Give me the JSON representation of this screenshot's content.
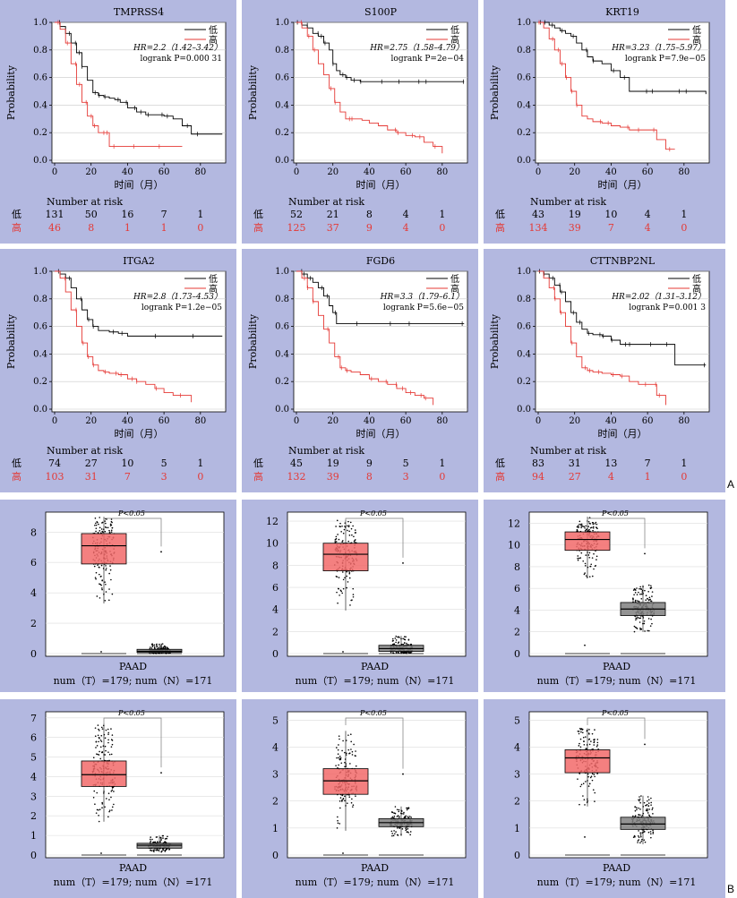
{
  "figure_labels": {
    "a": "A",
    "b": "B"
  },
  "chart_data": [
    {
      "type": "line",
      "kind": "kaplan-meier",
      "title": "TMPRSS4",
      "xlabel": "时间（月）",
      "ylabel": "Probability",
      "xlim": [
        0,
        95
      ],
      "ylim": [
        0,
        1
      ],
      "xticks": [
        0,
        20,
        40,
        60,
        80
      ],
      "yticks": [
        0.0,
        0.2,
        0.4,
        0.6,
        0.8,
        1.0
      ],
      "legend_position": "top-right",
      "hr_text": "HR=2.2（1.42–3.42）",
      "logrank_text": "logrank P=0.000 31",
      "risk_title": "Number at risk",
      "series": [
        {
          "name": "低",
          "color": "#000000",
          "risk": [
            "131",
            "50",
            "16",
            "7",
            "1"
          ],
          "x": [
            0,
            3,
            6,
            9,
            12,
            15,
            18,
            21,
            24,
            27,
            30,
            33,
            36,
            40,
            45,
            50,
            55,
            60,
            65,
            70,
            75,
            80,
            85,
            92
          ],
          "y": [
            1.0,
            0.97,
            0.92,
            0.85,
            0.78,
            0.68,
            0.58,
            0.49,
            0.47,
            0.46,
            0.45,
            0.44,
            0.42,
            0.38,
            0.35,
            0.33,
            0.33,
            0.32,
            0.3,
            0.25,
            0.19,
            0.19,
            0.19,
            0.19
          ]
        },
        {
          "name": "高",
          "color": "#e53935",
          "risk": [
            "46",
            "8",
            "1",
            "1",
            "0"
          ],
          "x": [
            0,
            3,
            6,
            9,
            12,
            15,
            18,
            21,
            24,
            27,
            30,
            40,
            50,
            60,
            70
          ],
          "y": [
            1.0,
            0.95,
            0.85,
            0.7,
            0.55,
            0.42,
            0.32,
            0.25,
            0.2,
            0.2,
            0.1,
            0.1,
            0.1,
            0.1,
            0.1
          ]
        }
      ]
    },
    {
      "type": "line",
      "kind": "kaplan-meier",
      "title": "S100P",
      "xlabel": "时间（月）",
      "ylabel": "Probability",
      "xlim": [
        0,
        95
      ],
      "ylim": [
        0,
        1
      ],
      "xticks": [
        0,
        20,
        40,
        60,
        80
      ],
      "yticks": [
        0.0,
        0.2,
        0.4,
        0.6,
        0.8,
        1.0
      ],
      "legend_position": "top-right",
      "hr_text": "HR=2.75（1.58–4.79）",
      "logrank_text": "logrank P=2e−04",
      "risk_title": "Number at risk",
      "series": [
        {
          "name": "低",
          "color": "#000000",
          "risk": [
            "52",
            "21",
            "8",
            "4",
            "1"
          ],
          "x": [
            0,
            3,
            6,
            9,
            12,
            15,
            18,
            20,
            22,
            24,
            27,
            30,
            35,
            40,
            50,
            60,
            70,
            80,
            92
          ],
          "y": [
            1.0,
            0.98,
            0.96,
            0.92,
            0.9,
            0.85,
            0.8,
            0.7,
            0.65,
            0.62,
            0.6,
            0.58,
            0.57,
            0.57,
            0.57,
            0.57,
            0.57,
            0.57,
            0.57
          ]
        },
        {
          "name": "高",
          "color": "#e53935",
          "risk": [
            "125",
            "37",
            "9",
            "4",
            "0"
          ],
          "x": [
            0,
            3,
            6,
            9,
            12,
            15,
            18,
            21,
            24,
            27,
            30,
            36,
            40,
            45,
            50,
            55,
            60,
            65,
            70,
            75,
            80
          ],
          "y": [
            1.0,
            0.96,
            0.9,
            0.8,
            0.7,
            0.62,
            0.52,
            0.42,
            0.35,
            0.3,
            0.3,
            0.29,
            0.27,
            0.25,
            0.22,
            0.2,
            0.18,
            0.17,
            0.13,
            0.1,
            0.05
          ]
        }
      ]
    },
    {
      "type": "line",
      "kind": "kaplan-meier",
      "title": "KRT19",
      "xlabel": "时间（月）",
      "ylabel": "Probability",
      "xlim": [
        0,
        95
      ],
      "ylim": [
        0,
        1
      ],
      "xticks": [
        0,
        20,
        40,
        60,
        80
      ],
      "yticks": [
        0.0,
        0.2,
        0.4,
        0.6,
        0.8,
        1.0
      ],
      "legend_position": "top-right",
      "hr_text": "HR=3.23（1.75–5.97）",
      "logrank_text": "logrank P=7.9e−05",
      "risk_title": "Number at risk",
      "series": [
        {
          "name": "低",
          "color": "#000000",
          "risk": [
            "43",
            "19",
            "10",
            "4",
            "1"
          ],
          "x": [
            0,
            3,
            6,
            9,
            12,
            15,
            18,
            21,
            24,
            27,
            30,
            35,
            40,
            45,
            50,
            60,
            70,
            80,
            92
          ],
          "y": [
            1.0,
            1.0,
            0.98,
            0.96,
            0.94,
            0.92,
            0.9,
            0.85,
            0.8,
            0.75,
            0.72,
            0.7,
            0.65,
            0.6,
            0.5,
            0.5,
            0.5,
            0.5,
            0.48
          ]
        },
        {
          "name": "高",
          "color": "#e53935",
          "risk": [
            "134",
            "39",
            "7",
            "4",
            "0"
          ],
          "x": [
            0,
            3,
            6,
            9,
            12,
            15,
            18,
            21,
            24,
            27,
            30,
            35,
            40,
            45,
            50,
            60,
            65,
            70,
            75
          ],
          "y": [
            1.0,
            0.96,
            0.88,
            0.8,
            0.7,
            0.6,
            0.5,
            0.4,
            0.32,
            0.3,
            0.28,
            0.27,
            0.25,
            0.24,
            0.22,
            0.22,
            0.15,
            0.08,
            0.08
          ]
        }
      ]
    },
    {
      "type": "line",
      "kind": "kaplan-meier",
      "title": "ITGA2",
      "xlabel": "时间（月）",
      "ylabel": "Probability",
      "xlim": [
        0,
        95
      ],
      "ylim": [
        0,
        1
      ],
      "xticks": [
        0,
        20,
        40,
        60,
        80
      ],
      "yticks": [
        0.0,
        0.2,
        0.4,
        0.6,
        0.8,
        1.0
      ],
      "legend_position": "top-right",
      "hr_text": "HR=2.8（1.73–4.53）",
      "logrank_text": "logrank P=1.2e−05",
      "risk_title": "Number at risk",
      "series": [
        {
          "name": "低",
          "color": "#000000",
          "risk": [
            "74",
            "27",
            "10",
            "5",
            "1"
          ],
          "x": [
            0,
            3,
            6,
            9,
            12,
            15,
            18,
            21,
            24,
            30,
            35,
            40,
            50,
            60,
            70,
            80,
            92
          ],
          "y": [
            1.0,
            0.98,
            0.95,
            0.88,
            0.8,
            0.72,
            0.65,
            0.6,
            0.57,
            0.56,
            0.55,
            0.53,
            0.53,
            0.53,
            0.53,
            0.53,
            0.53
          ]
        },
        {
          "name": "高",
          "color": "#e53935",
          "risk": [
            "103",
            "31",
            "7",
            "3",
            "0"
          ],
          "x": [
            0,
            3,
            6,
            9,
            12,
            15,
            18,
            21,
            24,
            27,
            30,
            35,
            40,
            45,
            50,
            55,
            60,
            65,
            70,
            75
          ],
          "y": [
            1.0,
            0.95,
            0.85,
            0.72,
            0.6,
            0.48,
            0.38,
            0.32,
            0.28,
            0.27,
            0.26,
            0.25,
            0.22,
            0.2,
            0.18,
            0.15,
            0.12,
            0.1,
            0.1,
            0.05
          ]
        }
      ]
    },
    {
      "type": "line",
      "kind": "kaplan-meier",
      "title": "FGD6",
      "xlabel": "时间（月）",
      "ylabel": "Probability",
      "xlim": [
        0,
        95
      ],
      "ylim": [
        0,
        1
      ],
      "xticks": [
        0,
        20,
        40,
        60,
        80
      ],
      "yticks": [
        0.0,
        0.2,
        0.4,
        0.6,
        0.8,
        1.0
      ],
      "legend_position": "top-right",
      "hr_text": "HR=3.3（1.79–6.1）",
      "logrank_text": "logrank P=5.6e−05",
      "risk_title": "Number at risk",
      "series": [
        {
          "name": "低",
          "color": "#000000",
          "risk": [
            "45",
            "19",
            "9",
            "5",
            "1"
          ],
          "x": [
            0,
            3,
            6,
            9,
            12,
            15,
            18,
            20,
            22,
            24,
            30,
            40,
            50,
            60,
            70,
            80,
            92
          ],
          "y": [
            1.0,
            0.98,
            0.95,
            0.92,
            0.88,
            0.82,
            0.75,
            0.7,
            0.62,
            0.62,
            0.62,
            0.62,
            0.62,
            0.62,
            0.62,
            0.62,
            0.62
          ]
        },
        {
          "name": "高",
          "color": "#e53935",
          "risk": [
            "132",
            "39",
            "8",
            "3",
            "0"
          ],
          "x": [
            0,
            3,
            6,
            9,
            12,
            15,
            18,
            21,
            24,
            27,
            30,
            35,
            40,
            45,
            50,
            55,
            60,
            65,
            70,
            75
          ],
          "y": [
            1.0,
            0.95,
            0.88,
            0.78,
            0.68,
            0.58,
            0.48,
            0.38,
            0.3,
            0.28,
            0.27,
            0.25,
            0.22,
            0.2,
            0.18,
            0.15,
            0.12,
            0.1,
            0.08,
            0.03
          ]
        }
      ]
    },
    {
      "type": "line",
      "kind": "kaplan-meier",
      "title": "CTTNBP2NL",
      "xlabel": "时间（月）",
      "ylabel": "Probability",
      "xlim": [
        0,
        95
      ],
      "ylim": [
        0,
        1
      ],
      "xticks": [
        0,
        20,
        40,
        60,
        80
      ],
      "yticks": [
        0.0,
        0.2,
        0.4,
        0.6,
        0.8,
        1.0
      ],
      "legend_position": "top-right",
      "hr_text": "HR=2.02（1.31–3.12）",
      "logrank_text": "logrank P=0.001 3",
      "risk_title": "Number at risk",
      "series": [
        {
          "name": "低",
          "color": "#000000",
          "risk": [
            "83",
            "31",
            "13",
            "7",
            "1"
          ],
          "x": [
            0,
            3,
            6,
            9,
            12,
            15,
            18,
            21,
            24,
            27,
            30,
            35,
            40,
            45,
            50,
            60,
            65,
            70,
            75,
            80,
            92
          ],
          "y": [
            1.0,
            0.98,
            0.95,
            0.9,
            0.85,
            0.78,
            0.7,
            0.63,
            0.58,
            0.55,
            0.54,
            0.53,
            0.5,
            0.47,
            0.47,
            0.47,
            0.47,
            0.47,
            0.32,
            0.32,
            0.32
          ]
        },
        {
          "name": "高",
          "color": "#e53935",
          "risk": [
            "94",
            "27",
            "4",
            "1",
            "0"
          ],
          "x": [
            0,
            3,
            6,
            9,
            12,
            15,
            18,
            21,
            24,
            27,
            30,
            35,
            40,
            45,
            50,
            55,
            60,
            65,
            70
          ],
          "y": [
            1.0,
            0.95,
            0.88,
            0.8,
            0.7,
            0.6,
            0.48,
            0.38,
            0.3,
            0.28,
            0.27,
            0.26,
            0.25,
            0.24,
            0.2,
            0.18,
            0.18,
            0.1,
            0.03
          ]
        }
      ]
    },
    {
      "type": "box",
      "xlabel": "PAAD",
      "caption": "num（T）=179; num（N）=171",
      "significance": "P<0.05",
      "ylim": [
        0,
        9.3
      ],
      "yticks": [
        0,
        2,
        4,
        6,
        8
      ],
      "groups": [
        {
          "id": "T",
          "color": "#f26a6a",
          "q1": 5.9,
          "median": 7.1,
          "q3": 7.9,
          "whisker_low": 3.3,
          "whisker_high": 9.0,
          "min_point": 0.0
        },
        {
          "id": "N",
          "color": "#808080",
          "q1": 0.08,
          "median": 0.15,
          "q3": 0.28,
          "whisker_low": 0.0,
          "whisker_high": 0.65,
          "max_point": 6.7
        }
      ]
    },
    {
      "type": "box",
      "xlabel": "PAAD",
      "caption": "num（T）=179; num（N）=171",
      "significance": "P<0.05",
      "ylim": [
        0,
        12.8
      ],
      "yticks": [
        0,
        2,
        4,
        6,
        8,
        10,
        12
      ],
      "groups": [
        {
          "id": "T",
          "color": "#f26a6a",
          "q1": 7.5,
          "median": 9.0,
          "q3": 10.0,
          "whisker_low": 3.9,
          "whisker_high": 12.1,
          "min_point": 0.0
        },
        {
          "id": "N",
          "color": "#808080",
          "q1": 0.2,
          "median": 0.45,
          "q3": 0.75,
          "whisker_low": 0.0,
          "whisker_high": 1.6,
          "max_point": 8.2
        }
      ]
    },
    {
      "type": "box",
      "xlabel": "PAAD",
      "caption": "num（T）=179; num（N）=171",
      "significance": "P<0.05",
      "ylim": [
        0,
        13.0
      ],
      "yticks": [
        0,
        2,
        4,
        6,
        8,
        10,
        12
      ],
      "groups": [
        {
          "id": "T",
          "color": "#f26a6a",
          "q1": 9.5,
          "median": 10.5,
          "q3": 11.2,
          "whisker_low": 7.0,
          "whisker_high": 12.6,
          "min_point": 0.6
        },
        {
          "id": "N",
          "color": "#808080",
          "q1": 3.5,
          "median": 4.1,
          "q3": 4.7,
          "whisker_low": 2.0,
          "whisker_high": 6.3,
          "max_point": 9.2
        }
      ]
    },
    {
      "type": "box",
      "xlabel": "PAAD",
      "caption": "num（T）=179; num（N）=171",
      "significance": "P<0.05",
      "ylim": [
        0,
        7.3
      ],
      "yticks": [
        0,
        1,
        2,
        3,
        4,
        5,
        6,
        7
      ],
      "groups": [
        {
          "id": "T",
          "color": "#f26a6a",
          "q1": 3.5,
          "median": 4.1,
          "q3": 4.8,
          "whisker_low": 1.7,
          "whisker_high": 6.7,
          "min_point": 0.0
        },
        {
          "id": "N",
          "color": "#808080",
          "q1": 0.35,
          "median": 0.5,
          "q3": 0.6,
          "whisker_low": 0.15,
          "whisker_high": 1.0,
          "max_point": 4.2
        }
      ]
    },
    {
      "type": "box",
      "xlabel": "PAAD",
      "caption": "num（T）=179; num（N）=171",
      "significance": "P<0.05",
      "ylim": [
        0,
        5.3
      ],
      "yticks": [
        0,
        1,
        2,
        3,
        4,
        5
      ],
      "groups": [
        {
          "id": "T",
          "color": "#f26a6a",
          "q1": 2.25,
          "median": 2.75,
          "q3": 3.2,
          "whisker_low": 0.9,
          "whisker_high": 4.6,
          "min_point": 0.0
        },
        {
          "id": "N",
          "color": "#808080",
          "q1": 1.05,
          "median": 1.2,
          "q3": 1.35,
          "whisker_low": 0.7,
          "whisker_high": 1.8,
          "max_point": 3.0
        }
      ]
    },
    {
      "type": "box",
      "xlabel": "PAAD",
      "caption": "num（T）=179; num（N）=171",
      "significance": "P<0.05",
      "ylim": [
        0,
        5.3
      ],
      "yticks": [
        0,
        1,
        2,
        3,
        4,
        5
      ],
      "groups": [
        {
          "id": "T",
          "color": "#f26a6a",
          "q1": 3.05,
          "median": 3.6,
          "q3": 3.9,
          "whisker_low": 1.8,
          "whisker_high": 4.7,
          "min_point": 0.6
        },
        {
          "id": "N",
          "color": "#808080",
          "q1": 0.95,
          "median": 1.15,
          "q3": 1.4,
          "whisker_low": 0.4,
          "whisker_high": 2.2,
          "max_point": 4.1
        }
      ]
    }
  ]
}
